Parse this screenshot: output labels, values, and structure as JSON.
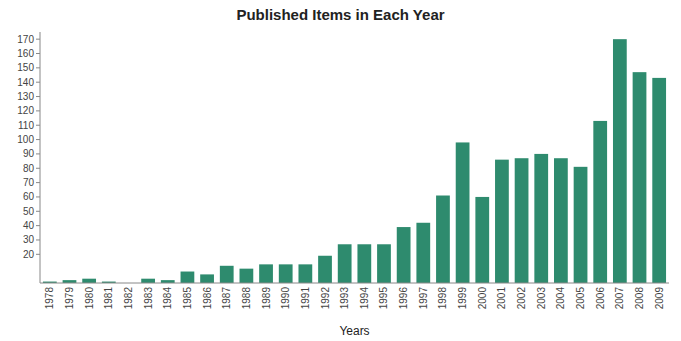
{
  "chart_data": {
    "type": "bar",
    "title": "Published Items in Each Year",
    "xlabel": "Years",
    "categories": [
      "1978",
      "1979",
      "1980",
      "1981",
      "1982",
      "1983",
      "1984",
      "1985",
      "1986",
      "1987",
      "1988",
      "1989",
      "1990",
      "1991",
      "1992",
      "1993",
      "1994",
      "1995",
      "1996",
      "1997",
      "1998",
      "1999",
      "2000",
      "2001",
      "2002",
      "2003",
      "2004",
      "2005",
      "2006",
      "2007",
      "2008",
      "2009"
    ],
    "values": [
      1,
      2,
      3,
      1,
      0,
      3,
      2,
      8,
      6,
      12,
      10,
      13,
      13,
      13,
      19,
      27,
      27,
      27,
      39,
      42,
      61,
      98,
      60,
      86,
      87,
      90,
      87,
      81,
      113,
      170,
      147,
      143
    ],
    "color": "#2e8b6e",
    "ylim": [
      0,
      175
    ],
    "yticks": [
      20,
      30,
      40,
      50,
      60,
      70,
      80,
      90,
      100,
      110,
      120,
      130,
      140,
      150,
      160,
      170
    ],
    "grid": false
  }
}
